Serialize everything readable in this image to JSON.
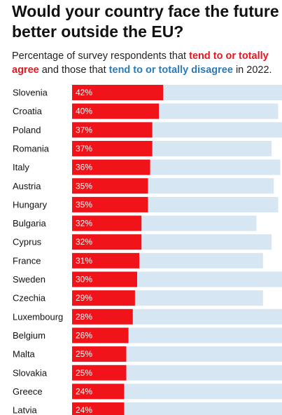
{
  "title": "Would your country face the future better outside the EU?",
  "subtitle": {
    "part1": "Percentage of survey respondents that ",
    "agree": "tend to or totally agree",
    "part2": " and those that ",
    "disagree": "tend to or totally disagree",
    "part3": " in 2022."
  },
  "colors": {
    "agree": "#f0141a",
    "disagree": "#d6e6f2",
    "agree_text": "#e8141e",
    "disagree_text": "#2b7bb9"
  },
  "chart_data": {
    "type": "bar",
    "orientation": "horizontal",
    "stacked": true,
    "categories": [
      "Slovenia",
      "Croatia",
      "Poland",
      "Romania",
      "Italy",
      "Austria",
      "Hungary",
      "Bulgaria",
      "Cyprus",
      "France",
      "Sweden",
      "Czechia",
      "Luxembourg",
      "Belgium",
      "Malta",
      "Slovakia",
      "Greece",
      "Latvia"
    ],
    "series": [
      {
        "name": "tend to or totally agree",
        "values": [
          42,
          40,
          37,
          37,
          36,
          35,
          35,
          32,
          32,
          31,
          30,
          29,
          28,
          26,
          25,
          25,
          24,
          24
        ],
        "labels": [
          "42%",
          "40%",
          "37%",
          "37%",
          "36%",
          "35%",
          "35%",
          "32%",
          "32%",
          "31%",
          "30%",
          "29%",
          "28%",
          "26%",
          "25%",
          "25%",
          "24%",
          "24%"
        ]
      },
      {
        "name": "tend to or totally disagree",
        "values": [
          58,
          55,
          63,
          55,
          60,
          58,
          60,
          53,
          60,
          57,
          70,
          59,
          72,
          74,
          75,
          73,
          76,
          76
        ]
      }
    ],
    "xlim": [
      0,
      100
    ]
  }
}
